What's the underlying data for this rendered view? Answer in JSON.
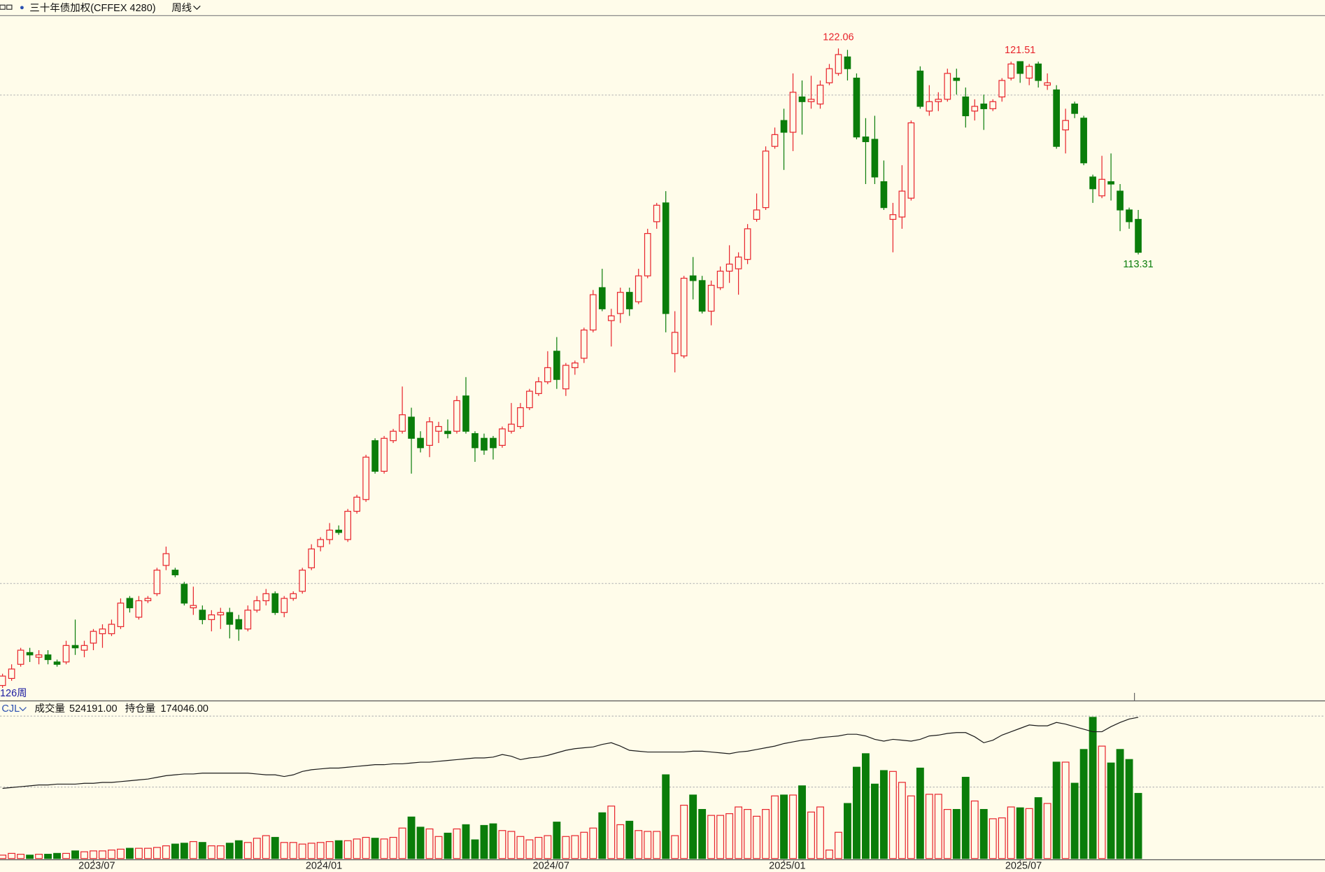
{
  "chart_data": [
    {
      "type": "candlestick",
      "title": "三十年债加权(CFFEX 4280)",
      "period": "周线",
      "bar_count_label": "126周",
      "categories": [
        null,
        null,
        null,
        null,
        null,
        null,
        null,
        null,
        null,
        null,
        "2023/07",
        null,
        null,
        null,
        null,
        null,
        null,
        null,
        null,
        null,
        null,
        null,
        null,
        null,
        null,
        null,
        null,
        null,
        null,
        null,
        null,
        null,
        null,
        null,
        null,
        "2024/01",
        null,
        null,
        null,
        null,
        null,
        null,
        null,
        null,
        null,
        null,
        null,
        null,
        null,
        null,
        null,
        null,
        null,
        null,
        null,
        null,
        null,
        null,
        null,
        null,
        "2024/07",
        null,
        null,
        null,
        null,
        null,
        null,
        null,
        null,
        null,
        null,
        null,
        null,
        null,
        null,
        null,
        null,
        null,
        null,
        null,
        null,
        null,
        null,
        null,
        null,
        null,
        "2025/01",
        null,
        null,
        null,
        null,
        null,
        null,
        null,
        null,
        null,
        null,
        null,
        null,
        null,
        null,
        null,
        null,
        null,
        null,
        null,
        null,
        null,
        null,
        null,
        null,
        null,
        "2025/07",
        null,
        null,
        null,
        null,
        null,
        null,
        null,
        null,
        null,
        null,
        null,
        null,
        null
      ],
      "open": [
        95.0,
        95.3,
        95.9,
        96.4,
        96.2,
        96.3,
        96.0,
        96.0,
        96.7,
        96.5,
        96.8,
        97.2,
        97.2,
        97.5,
        98.7,
        97.9,
        98.6,
        98.9,
        100.1,
        99.9,
        99.3,
        98.3,
        98.2,
        97.8,
        98.0,
        98.1,
        97.8,
        97.4,
        98.2,
        98.6,
        98.9,
        98.1,
        98.7,
        99.0,
        100.0,
        100.9,
        101.2,
        101.6,
        101.2,
        102.4,
        102.9,
        105.4,
        104.1,
        105.4,
        105.8,
        106.4,
        105.5,
        105.2,
        105.8,
        105.8,
        105.8,
        107.3,
        105.7,
        105.5,
        105.5,
        105.2,
        105.8,
        106.0,
        106.8,
        107.4,
        107.9,
        109.2,
        107.6,
        108.5,
        108.9,
        110.1,
        111.9,
        110.5,
        110.8,
        111.7,
        111.3,
        112.4,
        114.7,
        115.5,
        109.1,
        109.0,
        112.4,
        112.2,
        110.9,
        111.9,
        112.6,
        112.7,
        113.1,
        114.8,
        115.3,
        117.9,
        119.0,
        118.5,
        120.0,
        119.8,
        119.7,
        120.6,
        121.0,
        121.7,
        120.8,
        118.3,
        118.2,
        116.4,
        114.8,
        114.9,
        115.7,
        121.1,
        119.4,
        119.8,
        119.9,
        120.8,
        120.0,
        119.4,
        119.7,
        119.5,
        120.0,
        120.8,
        121.5,
        120.8,
        121.4,
        120.5,
        120.3,
        118.6,
        119.7,
        119.1,
        116.6,
        115.8,
        116.4,
        116.0,
        115.2,
        114.8
      ],
      "high": [
        95.5,
        95.9,
        96.6,
        96.6,
        96.5,
        96.5,
        96.1,
        96.9,
        97.8,
        96.9,
        97.4,
        97.6,
        97.8,
        98.7,
        98.8,
        98.8,
        98.8,
        100.0,
        100.9,
        100.0,
        99.4,
        99.2,
        98.4,
        98.2,
        98.3,
        98.3,
        98.0,
        98.4,
        98.8,
        99.1,
        99.0,
        98.8,
        99.0,
        100.0,
        101.0,
        101.3,
        101.9,
        101.8,
        102.5,
        103.1,
        104.8,
        105.5,
        105.6,
        105.9,
        107.7,
        106.8,
        105.8,
        106.4,
        106.2,
        106.3,
        107.3,
        108.1,
        105.8,
        105.7,
        105.6,
        106.0,
        107.0,
        107.0,
        107.6,
        108.1,
        109.2,
        109.8,
        108.7,
        108.8,
        110.2,
        111.8,
        112.7,
        111.0,
        111.9,
        111.9,
        112.7,
        114.4,
        115.5,
        116.0,
        110.9,
        112.4,
        113.2,
        112.4,
        112.2,
        112.8,
        113.7,
        113.4,
        114.6,
        115.9,
        117.9,
        118.7,
        119.5,
        121.0,
        120.7,
        120.9,
        120.7,
        121.4,
        122.06,
        122.0,
        121.0,
        119.1,
        119.2,
        117.3,
        115.5,
        117.1,
        119.0,
        121.3,
        120.5,
        120.2,
        121.2,
        121.2,
        120.4,
        119.9,
        120.1,
        119.9,
        120.8,
        121.5,
        121.51,
        121.4,
        121.5,
        121.0,
        120.5,
        119.5,
        119.8,
        119.2,
        116.7,
        117.5,
        117.6,
        116.3,
        115.3,
        115.2
      ],
      "low": [
        94.9,
        95.2,
        95.8,
        96.0,
        95.9,
        95.9,
        95.8,
        95.9,
        96.3,
        96.2,
        96.5,
        96.6,
        97.1,
        97.4,
        98.1,
        97.8,
        98.5,
        98.8,
        99.9,
        99.6,
        98.4,
        98.0,
        97.6,
        97.3,
        97.4,
        97.0,
        96.9,
        97.3,
        98.1,
        98.4,
        98.0,
        97.9,
        98.6,
        98.9,
        99.9,
        100.7,
        101.0,
        101.4,
        101.1,
        102.3,
        102.8,
        104.0,
        104.0,
        105.3,
        105.7,
        104.0,
        104.9,
        104.7,
        105.3,
        105.5,
        105.7,
        105.7,
        104.5,
        104.8,
        104.6,
        105.1,
        105.7,
        105.9,
        106.7,
        107.3,
        107.8,
        107.6,
        107.3,
        108.2,
        108.7,
        110.0,
        110.9,
        109.4,
        110.4,
        110.7,
        111.2,
        112.3,
        114.4,
        110.0,
        108.3,
        108.9,
        111.4,
        110.8,
        110.3,
        111.8,
        112.1,
        111.6,
        112.9,
        114.7,
        115.2,
        117.8,
        116.9,
        117.7,
        118.4,
        119.5,
        119.5,
        120.5,
        120.9,
        120.7,
        118.2,
        116.3,
        116.3,
        115.2,
        113.4,
        114.4,
        115.6,
        119.5,
        119.2,
        119.4,
        119.8,
        120.1,
        118.7,
        119.0,
        118.6,
        119.4,
        119.8,
        120.7,
        120.6,
        120.5,
        120.4,
        120.3,
        117.8,
        117.6,
        119.1,
        117.1,
        115.5,
        115.7,
        115.6,
        114.3,
        114.4,
        113.31
      ],
      "close": [
        95.4,
        95.7,
        96.5,
        96.3,
        96.3,
        96.1,
        95.9,
        96.7,
        96.6,
        96.7,
        97.3,
        97.4,
        97.6,
        98.5,
        98.3,
        98.6,
        98.7,
        99.9,
        100.6,
        99.7,
        98.5,
        98.4,
        97.8,
        98.0,
        98.1,
        97.6,
        97.4,
        98.2,
        98.6,
        98.9,
        98.1,
        98.7,
        98.9,
        99.9,
        100.8,
        101.2,
        101.6,
        101.5,
        102.4,
        103.0,
        104.7,
        104.1,
        105.5,
        105.8,
        106.5,
        105.5,
        105.1,
        106.2,
        106.0,
        105.7,
        107.1,
        105.8,
        105.1,
        105.0,
        105.1,
        105.9,
        106.1,
        106.8,
        107.5,
        107.9,
        108.5,
        108.0,
        108.6,
        108.7,
        110.1,
        111.6,
        111.0,
        110.7,
        111.7,
        111.0,
        112.4,
        114.2,
        115.4,
        110.8,
        110.0,
        112.3,
        112.2,
        110.9,
        112.0,
        112.6,
        112.9,
        113.2,
        114.4,
        115.2,
        117.7,
        118.4,
        118.5,
        120.2,
        119.8,
        119.9,
        120.5,
        121.2,
        121.8,
        121.2,
        118.3,
        118.1,
        116.6,
        115.3,
        115.0,
        116.0,
        118.9,
        119.6,
        119.8,
        119.9,
        121.0,
        120.7,
        119.2,
        119.6,
        119.5,
        119.8,
        120.7,
        121.4,
        121.0,
        121.3,
        120.7,
        120.6,
        117.9,
        119.0,
        119.3,
        117.2,
        116.1,
        116.5,
        116.3,
        115.2,
        114.7,
        113.4
      ],
      "up_color": "#e8242c",
      "down_color": "#0a7d0a",
      "ylim": [
        94.4,
        123.4
      ],
      "labeled_highs": [
        92,
        112
      ],
      "labeled_lows": [
        125
      ]
    },
    {
      "type": "bar",
      "indicator": "CJL",
      "ylim": [
        0,
        1150000
      ],
      "y2lim": [
        0,
        176000
      ],
      "series": [
        {
          "name": "成交量",
          "values": [
            27000,
            41000,
            34000,
            27000,
            34000,
            34000,
            41000,
            41000,
            61000,
            54000,
            61000,
            61000,
            68000,
            75000,
            82000,
            82000,
            82000,
            89000,
            102000,
            116000,
            123000,
            136000,
            129000,
            102000,
            102000,
            123000,
            143000,
            129000,
            163000,
            184000,
            170000,
            129000,
            129000,
            116000,
            123000,
            129000,
            136000,
            143000,
            143000,
            157000,
            170000,
            163000,
            157000,
            170000,
            245000,
            334000,
            252000,
            238000,
            177000,
            204000,
            238000,
            272000,
            150000,
            266000,
            279000,
            225000,
            218000,
            177000,
            150000,
            170000,
            184000,
            293000,
            177000,
            184000,
            211000,
            245000,
            368000,
            422000,
            272000,
            300000,
            225000,
            218000,
            218000,
            674000,
            184000,
            429000,
            511000,
            395000,
            347000,
            347000,
            361000,
            415000,
            395000,
            340000,
            395000,
            504000,
            511000,
            511000,
            585000,
            374000,
            415000,
            68000,
            211000,
            443000,
            735000,
            844000,
            599000,
            708000,
            701000,
            613000,
            504000,
            728000,
            517000,
            517000,
            395000,
            395000,
            654000,
            463000,
            395000,
            320000,
            327000,
            415000,
            408000,
            402000,
            490000,
            443000,
            776000,
            776000,
            606000,
            878000,
            1137000,
            905000,
            769000,
            878000,
            797000,
            524191
          ],
          "value_labels": [
            null,
            null,
            null,
            null,
            null,
            null,
            null,
            null,
            null,
            null,
            null,
            null,
            null,
            null,
            null,
            null,
            null,
            null,
            null,
            null,
            null,
            null,
            null,
            null,
            null,
            null,
            null,
            null,
            null,
            null,
            null,
            null,
            null,
            null,
            null,
            null,
            null,
            null,
            null,
            null,
            null,
            null,
            null,
            null,
            null,
            null,
            null,
            null,
            null,
            null,
            null,
            null,
            null,
            null,
            null,
            null,
            null,
            null,
            null,
            null,
            null,
            null,
            null,
            null,
            null,
            null,
            null,
            null,
            null,
            null,
            null,
            null,
            null,
            null,
            null,
            null,
            null,
            null,
            null,
            null,
            null,
            null,
            null,
            null,
            null,
            null,
            null,
            null,
            null,
            null,
            null,
            null,
            null,
            null,
            null,
            null,
            null,
            null,
            null,
            null,
            null,
            null,
            null,
            null,
            null,
            null,
            null,
            null,
            null,
            null,
            null,
            null,
            null,
            null,
            null,
            null,
            null,
            null,
            null,
            null,
            null,
            null,
            null,
            null,
            null,
            "524191.00"
          ]
        },
        {
          "name": "持仓量",
          "type": "line",
          "axis": "y2",
          "color": "#1a1a1a",
          "values": [
            86400,
            87500,
            88500,
            89600,
            90600,
            90600,
            91600,
            91600,
            91600,
            92700,
            92700,
            93700,
            93700,
            94800,
            95800,
            96800,
            97900,
            100000,
            102100,
            103100,
            104100,
            104100,
            105200,
            105200,
            105200,
            105200,
            105200,
            105200,
            104100,
            103100,
            103100,
            101000,
            103100,
            107300,
            109300,
            110400,
            111400,
            111400,
            112500,
            113500,
            114600,
            115600,
            115600,
            116600,
            116600,
            117700,
            118700,
            118700,
            119800,
            120800,
            121800,
            122900,
            123900,
            123900,
            125000,
            128100,
            126000,
            121800,
            123900,
            125000,
            127100,
            130200,
            133300,
            135400,
            136400,
            137500,
            140600,
            142700,
            138500,
            133300,
            132300,
            131200,
            131200,
            131200,
            131200,
            131200,
            132300,
            132300,
            131200,
            130200,
            129100,
            131200,
            132300,
            134300,
            136400,
            138500,
            141600,
            143700,
            145800,
            146800,
            148900,
            150000,
            151000,
            153100,
            153100,
            151000,
            146800,
            144700,
            146800,
            145800,
            144700,
            146800,
            151000,
            152000,
            154100,
            155200,
            155200,
            150000,
            142700,
            145800,
            152000,
            156200,
            160400,
            164500,
            163500,
            163500,
            167700,
            165600,
            162500,
            159300,
            156200,
            156200,
            162500,
            167700,
            171800,
            174046
          ],
          "value_labels": [
            null,
            null,
            null,
            null,
            null,
            null,
            null,
            null,
            null,
            null,
            null,
            null,
            null,
            null,
            null,
            null,
            null,
            null,
            null,
            null,
            null,
            null,
            null,
            null,
            null,
            null,
            null,
            null,
            null,
            null,
            null,
            null,
            null,
            null,
            null,
            null,
            null,
            null,
            null,
            null,
            null,
            null,
            null,
            null,
            null,
            null,
            null,
            null,
            null,
            null,
            null,
            null,
            null,
            null,
            null,
            null,
            null,
            null,
            null,
            null,
            null,
            null,
            null,
            null,
            null,
            null,
            null,
            null,
            null,
            null,
            null,
            null,
            null,
            null,
            null,
            null,
            null,
            null,
            null,
            null,
            null,
            null,
            null,
            null,
            null,
            null,
            null,
            null,
            null,
            null,
            null,
            null,
            null,
            null,
            null,
            null,
            null,
            null,
            null,
            null,
            null,
            null,
            null,
            null,
            null,
            null,
            null,
            null,
            null,
            null,
            null,
            null,
            null,
            null,
            null,
            null,
            null,
            null,
            null,
            null,
            null,
            null,
            null,
            null,
            null,
            "174046.00"
          ]
        }
      ]
    }
  ]
}
